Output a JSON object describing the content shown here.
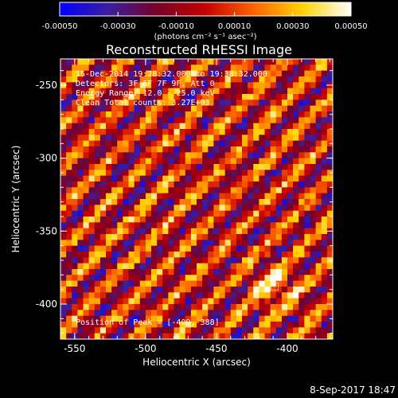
{
  "chart_data": {
    "type": "heatmap",
    "title": "Reconstructed RHESSI Image",
    "xlabel": "Heliocentric X (arcsec)",
    "ylabel": "Heliocentric Y (arcsec)",
    "xlim": [
      -560,
      -368
    ],
    "ylim": [
      -424,
      -232
    ],
    "x_ticks": [
      "-550",
      "-500",
      "-450",
      "-400"
    ],
    "x_tick_values": [
      -550,
      -500,
      -450,
      -400
    ],
    "y_ticks": [
      "-250",
      "-300",
      "-350",
      "-400"
    ],
    "y_tick_values": [
      -250,
      -300,
      -350,
      -400
    ],
    "colorbar": {
      "range": [
        -0.0005,
        0.0005
      ],
      "tick_labels": [
        "-0.00050",
        "-0.00030",
        "-0.00010",
        "0.00010",
        "0.00030",
        "0.00050"
      ],
      "tick_values": [
        -0.0005,
        -0.0003,
        -0.0001,
        0.0001,
        0.0003,
        0.0005
      ],
      "units": "(photons cm⁻² s⁻¹ asec⁻²)",
      "colors": [
        "#0000ff",
        "#3c1ea0",
        "#780028",
        "#c80000",
        "#ff6400",
        "#ffd200",
        "#ffffff"
      ]
    },
    "pixel_size_arcsec": 4,
    "pattern": {
      "description_values": "periodic fringe pattern",
      "period_arcsec": 28,
      "peak_position": [
        -409,
        -388
      ]
    },
    "annotations": [
      "15-Dec-2014 19:28:32.000 to 19:38:32.000",
      "Detectors: 3F 6F 7F 9F, Att 0",
      "Energy Range: 12.0 - 25.0 keV",
      "Clean    Total counts: 3.27E+03",
      "Position of Peak = [-409,-388]"
    ],
    "timestamp": "8-Sep-2017 18:47"
  }
}
